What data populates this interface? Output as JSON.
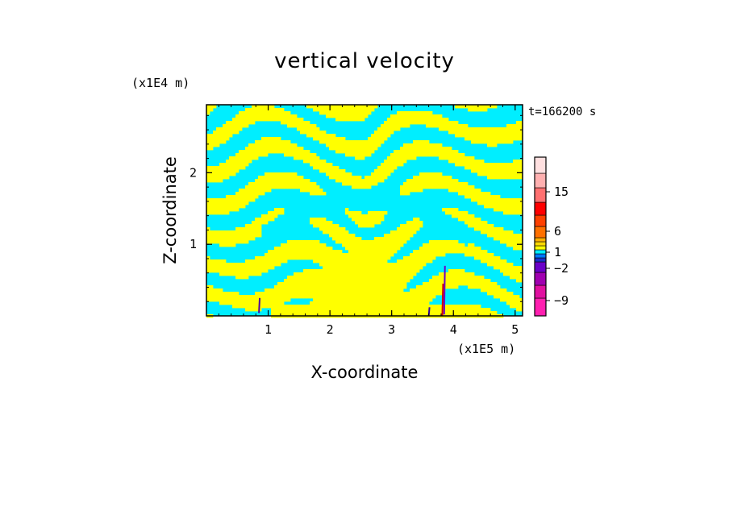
{
  "chart_data": {
    "type": "heatmap",
    "title": "vertical velocity",
    "time_label": "t=166200 s",
    "xlabel": "X-coordinate",
    "ylabel": "Z-coordinate",
    "x_unit_label": "(x1E5 m)",
    "y_unit_label": "(x1E4 m)",
    "xlim": [
      0,
      5.12
    ],
    "ylim": [
      0,
      2.95
    ],
    "x_ticks": [
      1,
      2,
      3,
      4,
      5
    ],
    "y_ticks": [
      1,
      2
    ],
    "x_tick_labels": [
      "1",
      "2",
      "3",
      "4",
      "5"
    ],
    "y_tick_labels": [
      "1",
      "2"
    ],
    "field_colors": {
      "positive": "#ffff00",
      "negative": "#00eeff"
    },
    "colorbar": {
      "labels": [
        {
          "value": 15,
          "text": "15"
        },
        {
          "value": 6,
          "text": "6"
        },
        {
          "value": 1,
          "text": "1"
        },
        {
          "value": -2,
          "text": "-2"
        },
        {
          "value": -9,
          "text": "-9"
        }
      ],
      "segments": [
        "#ff20b0",
        "#e010a0",
        "#a000b0",
        "#6a00c8",
        "#1830c8",
        "#0078ff",
        "#00eeff",
        "#ffff00",
        "#ffd800",
        "#ffb000",
        "#ff7000",
        "#ff4000",
        "#ff0000",
        "#ff7070",
        "#ffb0b0",
        "#ffe0e0",
        "#fff4f0"
      ]
    }
  }
}
